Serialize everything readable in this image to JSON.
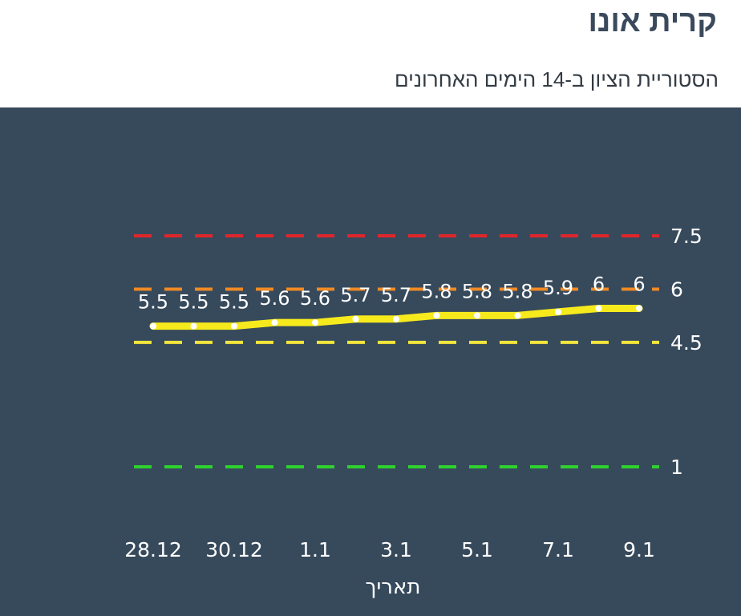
{
  "header": {
    "title": "קרית אונו",
    "subtitle": "הסטוריית הציון ב-14 הימים האחרונים"
  },
  "chart_data": {
    "type": "line",
    "x": [
      "28.12",
      "29.12",
      "30.12",
      "31.12",
      "1.1",
      "2.1",
      "3.1",
      "4.1",
      "5.1",
      "6.1",
      "7.1",
      "8.1",
      "9.1"
    ],
    "values": [
      5.5,
      5.5,
      5.5,
      5.6,
      5.6,
      5.7,
      5.7,
      5.8,
      5.8,
      5.8,
      5.9,
      6,
      6
    ],
    "value_labels": [
      "5.5",
      "5.5",
      "5.5",
      "5.6",
      "5.6",
      "5.7",
      "5.7",
      "5.8",
      "5.8",
      "5.8",
      "5.9",
      "6",
      "6"
    ],
    "x_tick_labels": [
      "28.12",
      "30.12",
      "1.1",
      "3.1",
      "5.1",
      "7.1",
      "9.1"
    ],
    "xlabel": "תאריך",
    "ylabel": "",
    "thresholds": [
      {
        "value": 7.5,
        "label": "7.5",
        "color": "#e0262a"
      },
      {
        "value": 6,
        "label": "6",
        "color": "#f08a24"
      },
      {
        "value": 4.5,
        "label": "4.5",
        "color": "#f2e53a"
      },
      {
        "value": 1,
        "label": "1",
        "color": "#2ed12e"
      }
    ],
    "line_color": "#f7ea1c",
    "point_color": "#ffffff",
    "background": "#374a5c"
  }
}
